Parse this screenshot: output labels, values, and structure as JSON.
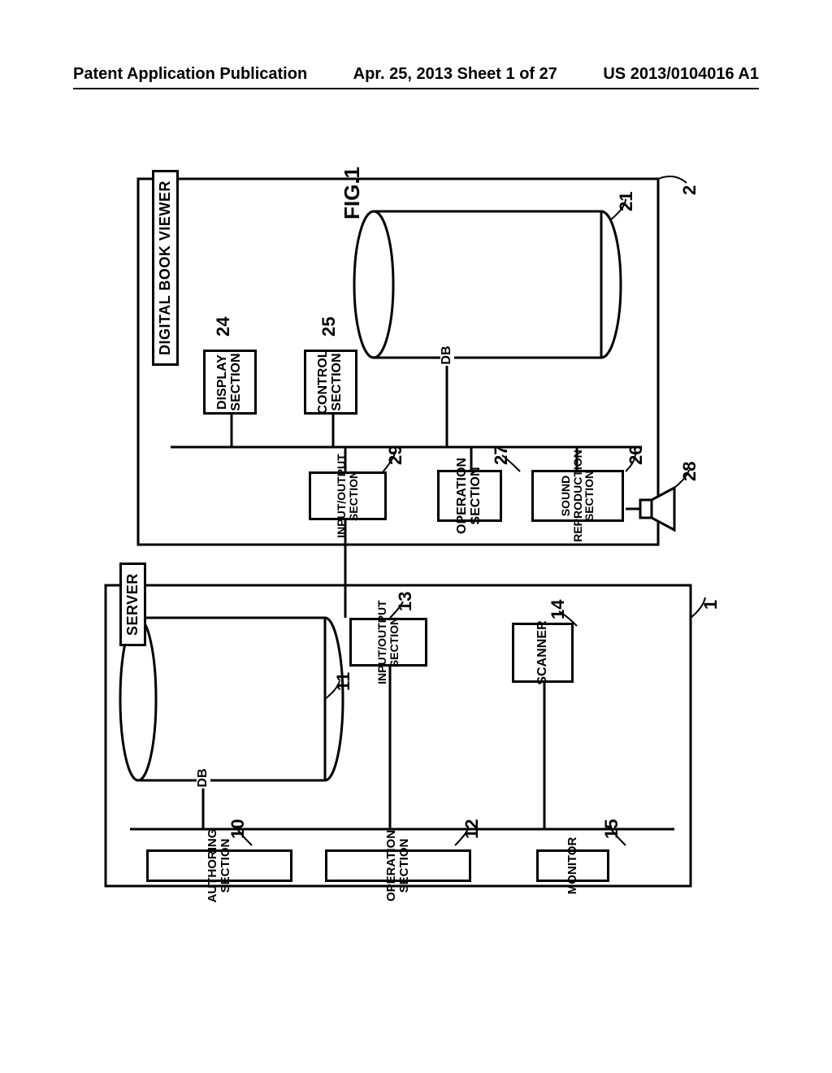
{
  "header": {
    "left": "Patent Application Publication",
    "center": "Apr. 25, 2013  Sheet 1 of 27",
    "right": "US 2013/0104016 A1"
  },
  "figure": {
    "title": "FIG.1",
    "blocks": {
      "viewer_title": "DIGITAL BOOK VIEWER",
      "server_title": "SERVER",
      "db_top": "DB",
      "db_bottom": "DB",
      "display_section": "DISPLAY\nSECTION",
      "control_section": "CONTROL\nSECTION",
      "operation_section_27": "OPERATION\nSECTION",
      "sound_reproduction": "SOUND\nREPRODUCTION\nSECTION",
      "io_29": "INPUT/OUTPUT\nSECTION",
      "io_13": "INPUT/OUTPUT\nSECTION",
      "scanner": "SCANNER",
      "authoring": "AUTHORING SECTION",
      "operation_section_12": "OPERATION SECTION",
      "monitor": "MONITOR"
    },
    "refs": {
      "r2": "2",
      "r21": "21",
      "r24": "24",
      "r25": "25",
      "r26": "26",
      "r27": "27",
      "r28": "28",
      "r29": "29",
      "r1": "1",
      "r11": "11",
      "r13": "13",
      "r14": "14",
      "r10": "10",
      "r12": "12",
      "r15": "15"
    },
    "style": {
      "stroke": "#000000",
      "stroke_width": 3,
      "background": "#ffffff",
      "font_family": "Arial"
    }
  }
}
